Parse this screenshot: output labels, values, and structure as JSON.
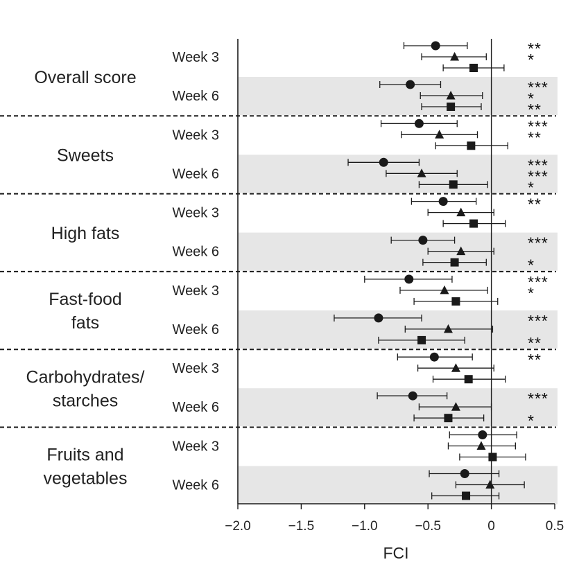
{
  "chart_data": {
    "type": "forest",
    "title": "",
    "xlabel": "FCI",
    "ylabel": "",
    "xlim": [
      -2.0,
      0.5
    ],
    "x_ticks": [
      -2.0,
      -1.5,
      -1.0,
      -0.5,
      0,
      0.5
    ],
    "x_tick_labels": [
      "−2.0",
      "−1.5",
      "−1.0",
      "−0.5",
      "0",
      "0.5"
    ],
    "reference_line": 0,
    "markers": [
      "circle",
      "triangle",
      "square"
    ],
    "color": "#1a1a1a",
    "band_color": "#e6e6e6",
    "categories": [
      {
        "label_lines": [
          "Overall score"
        ],
        "groups": [
          {
            "week": "Week 3",
            "points": [
              {
                "marker": "circle",
                "value": -0.44,
                "ci": [
                  -0.69,
                  -0.19
                ],
                "sig": "**"
              },
              {
                "marker": "triangle",
                "value": -0.29,
                "ci": [
                  -0.55,
                  -0.04
                ],
                "sig": "*"
              },
              {
                "marker": "square",
                "value": -0.14,
                "ci": [
                  -0.38,
                  0.1
                ],
                "sig": ""
              }
            ]
          },
          {
            "week": "Week 6",
            "points": [
              {
                "marker": "circle",
                "value": -0.64,
                "ci": [
                  -0.88,
                  -0.4
                ],
                "sig": "***"
              },
              {
                "marker": "triangle",
                "value": -0.32,
                "ci": [
                  -0.56,
                  -0.07
                ],
                "sig": "*"
              },
              {
                "marker": "square",
                "value": -0.32,
                "ci": [
                  -0.55,
                  -0.08
                ],
                "sig": "**"
              }
            ]
          }
        ]
      },
      {
        "label_lines": [
          "Sweets"
        ],
        "groups": [
          {
            "week": "Week 3",
            "points": [
              {
                "marker": "circle",
                "value": -0.57,
                "ci": [
                  -0.87,
                  -0.27
                ],
                "sig": "***"
              },
              {
                "marker": "triangle",
                "value": -0.41,
                "ci": [
                  -0.71,
                  -0.11
                ],
                "sig": "**"
              },
              {
                "marker": "square",
                "value": -0.16,
                "ci": [
                  -0.44,
                  0.13
                ],
                "sig": ""
              }
            ]
          },
          {
            "week": "Week 6",
            "points": [
              {
                "marker": "circle",
                "value": -0.85,
                "ci": [
                  -1.13,
                  -0.57
                ],
                "sig": "***"
              },
              {
                "marker": "triangle",
                "value": -0.55,
                "ci": [
                  -0.83,
                  -0.27
                ],
                "sig": "***"
              },
              {
                "marker": "square",
                "value": -0.3,
                "ci": [
                  -0.57,
                  -0.03
                ],
                "sig": "*"
              }
            ]
          }
        ]
      },
      {
        "label_lines": [
          "High fats"
        ],
        "groups": [
          {
            "week": "Week 3",
            "points": [
              {
                "marker": "circle",
                "value": -0.38,
                "ci": [
                  -0.63,
                  -0.12
                ],
                "sig": "**"
              },
              {
                "marker": "triangle",
                "value": -0.24,
                "ci": [
                  -0.5,
                  0.02
                ],
                "sig": ""
              },
              {
                "marker": "square",
                "value": -0.14,
                "ci": [
                  -0.38,
                  0.11
                ],
                "sig": ""
              }
            ]
          },
          {
            "week": "Week 6",
            "points": [
              {
                "marker": "circle",
                "value": -0.54,
                "ci": [
                  -0.79,
                  -0.29
                ],
                "sig": "***"
              },
              {
                "marker": "triangle",
                "value": -0.24,
                "ci": [
                  -0.5,
                  0.02
                ],
                "sig": ""
              },
              {
                "marker": "square",
                "value": -0.29,
                "ci": [
                  -0.54,
                  -0.04
                ],
                "sig": "*"
              }
            ]
          }
        ]
      },
      {
        "label_lines": [
          "Fast-food",
          "fats"
        ],
        "groups": [
          {
            "week": "Week 3",
            "points": [
              {
                "marker": "circle",
                "value": -0.65,
                "ci": [
                  -1.0,
                  -0.31
                ],
                "sig": "***"
              },
              {
                "marker": "triangle",
                "value": -0.37,
                "ci": [
                  -0.72,
                  -0.03
                ],
                "sig": "*"
              },
              {
                "marker": "square",
                "value": -0.28,
                "ci": [
                  -0.61,
                  0.05
                ],
                "sig": ""
              }
            ]
          },
          {
            "week": "Week 6",
            "points": [
              {
                "marker": "circle",
                "value": -0.89,
                "ci": [
                  -1.24,
                  -0.55
                ],
                "sig": "***"
              },
              {
                "marker": "triangle",
                "value": -0.34,
                "ci": [
                  -0.68,
                  0.01
                ],
                "sig": ""
              },
              {
                "marker": "square",
                "value": -0.55,
                "ci": [
                  -0.89,
                  -0.21
                ],
                "sig": "**"
              }
            ]
          }
        ]
      },
      {
        "label_lines": [
          "Carbohydrates/",
          "starches"
        ],
        "groups": [
          {
            "week": "Week 3",
            "points": [
              {
                "marker": "circle",
                "value": -0.45,
                "ci": [
                  -0.74,
                  -0.15
                ],
                "sig": "**"
              },
              {
                "marker": "triangle",
                "value": -0.28,
                "ci": [
                  -0.58,
                  0.02
                ],
                "sig": ""
              },
              {
                "marker": "square",
                "value": -0.18,
                "ci": [
                  -0.46,
                  0.11
                ],
                "sig": ""
              }
            ]
          },
          {
            "week": "Week 6",
            "points": [
              {
                "marker": "circle",
                "value": -0.62,
                "ci": [
                  -0.9,
                  -0.35
                ],
                "sig": "***"
              },
              {
                "marker": "triangle",
                "value": -0.28,
                "ci": [
                  -0.57,
                  0.0
                ],
                "sig": ""
              },
              {
                "marker": "square",
                "value": -0.34,
                "ci": [
                  -0.61,
                  -0.06
                ],
                "sig": "*"
              }
            ]
          }
        ]
      },
      {
        "label_lines": [
          "Fruits and",
          "vegetables"
        ],
        "groups": [
          {
            "week": "Week 3",
            "points": [
              {
                "marker": "circle",
                "value": -0.07,
                "ci": [
                  -0.33,
                  0.2
                ],
                "sig": ""
              },
              {
                "marker": "triangle",
                "value": -0.08,
                "ci": [
                  -0.34,
                  0.19
                ],
                "sig": ""
              },
              {
                "marker": "square",
                "value": 0.01,
                "ci": [
                  -0.25,
                  0.27
                ],
                "sig": ""
              }
            ]
          },
          {
            "week": "Week 6",
            "points": [
              {
                "marker": "circle",
                "value": -0.21,
                "ci": [
                  -0.49,
                  0.06
                ],
                "sig": ""
              },
              {
                "marker": "triangle",
                "value": -0.01,
                "ci": [
                  -0.28,
                  0.26
                ],
                "sig": ""
              },
              {
                "marker": "square",
                "value": -0.2,
                "ci": [
                  -0.47,
                  0.06
                ],
                "sig": ""
              }
            ]
          }
        ]
      }
    ]
  }
}
